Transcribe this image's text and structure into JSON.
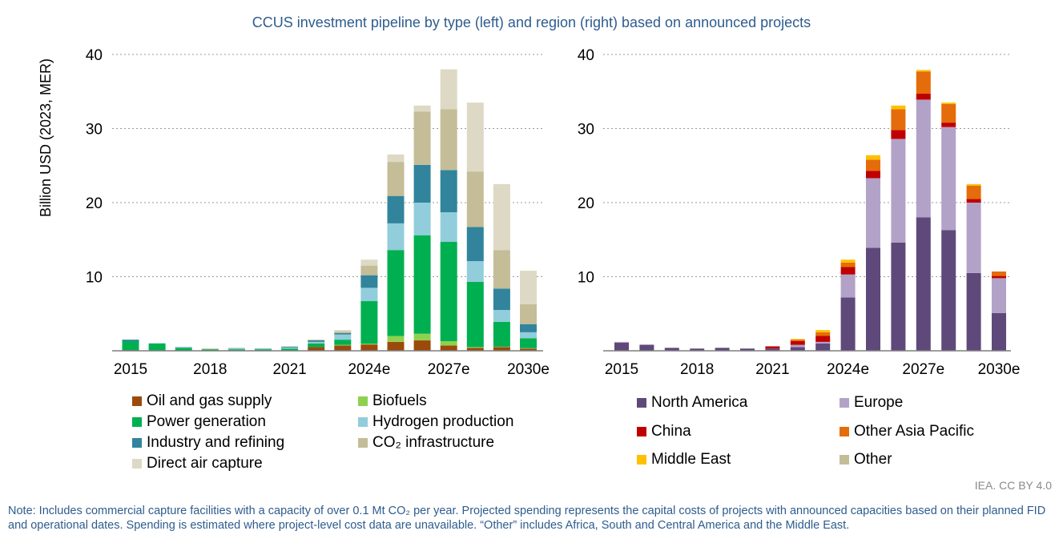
{
  "title": "CCUS investment pipeline by type (left) and region (right) based on announced projects",
  "credit": "IEA. CC BY 4.0",
  "note": "Note: Includes commercial capture facilities with a capacity of over 0.1 Mt CO₂ per year. Projected spending represents the capital costs of projects with announced capacities based on their planned FID and operational dates. Spending is estimated where project-level cost data are unavailable. “Other” includes Africa, South and Central America and the Middle East.",
  "chart_data": [
    {
      "type": "bar",
      "stacked": true,
      "title": "by type",
      "ylabel": "Billion USD (2023, MER)",
      "ylim": [
        0,
        40
      ],
      "yticks": [
        "10",
        "20",
        "30",
        "40"
      ],
      "grid": true,
      "categories": [
        "2015",
        "2016",
        "2017",
        "2018",
        "2019",
        "2020",
        "2021",
        "2022",
        "2023",
        "2024e",
        "2025e",
        "2026e",
        "2027e",
        "2028e",
        "2029e",
        "2030e"
      ],
      "xtick_labels": [
        "2015",
        "2018",
        "2021",
        "2024e",
        "2027e",
        "2030e"
      ],
      "legend_position": "bottom",
      "series": [
        {
          "name": "Oil and gas supply",
          "color": "#9c4a0c",
          "values": [
            0.1,
            0,
            0,
            0,
            0,
            0,
            0,
            0.5,
            0.7,
            0.85,
            1.2,
            1.4,
            0.7,
            0.4,
            0.5,
            0.3
          ]
        },
        {
          "name": "Biofuels",
          "color": "#8fd14f",
          "values": [
            0,
            0,
            0,
            0,
            0,
            0,
            0,
            0,
            0.1,
            0.1,
            0.8,
            0.9,
            0.6,
            0.1,
            0.05,
            0.05
          ]
        },
        {
          "name": "Power generation",
          "color": "#00b050",
          "values": [
            1.2,
            1.0,
            0.4,
            0.2,
            0.2,
            0.2,
            0.3,
            0.5,
            0.7,
            5.75,
            11.6,
            13.3,
            13.4,
            8.8,
            3.35,
            1.35
          ]
        },
        {
          "name": "Hydrogen production",
          "color": "#92cddc",
          "values": [
            0,
            0,
            0.05,
            0,
            0.1,
            0.05,
            0.15,
            0.2,
            0.7,
            1.8,
            3.6,
            4.4,
            4.0,
            2.8,
            1.6,
            0.8
          ]
        },
        {
          "name": "Industry and refining",
          "color": "#31849b",
          "values": [
            0.2,
            0,
            0.05,
            0,
            0.05,
            0.05,
            0.1,
            0.2,
            0.2,
            1.7,
            3.7,
            5.1,
            5.7,
            4.6,
            2.9,
            1.1
          ]
        },
        {
          "name": "CO₂ infrastructure",
          "color": "#c4bd97",
          "values": [
            0,
            0,
            0,
            0.1,
            0.05,
            0,
            0.05,
            0.1,
            0.2,
            1.3,
            4.6,
            7.2,
            8.2,
            7.5,
            5.2,
            2.7
          ]
        },
        {
          "name": "Direct air capture",
          "color": "#ddd9c4",
          "values": [
            0,
            0,
            0,
            0,
            0,
            0,
            0,
            0,
            0.2,
            0.8,
            1.0,
            0.8,
            5.4,
            9.3,
            8.9,
            4.5
          ]
        }
      ]
    },
    {
      "type": "bar",
      "stacked": true,
      "title": "by region",
      "ylim": [
        0,
        40
      ],
      "yticks": [
        "10",
        "20",
        "30",
        "40"
      ],
      "grid": true,
      "categories": [
        "2015",
        "2016",
        "2017",
        "2018",
        "2019",
        "2020",
        "2021",
        "2022",
        "2023",
        "2024e",
        "2025e",
        "2026e",
        "2027e",
        "2028e",
        "2029e",
        "2030e"
      ],
      "xtick_labels": [
        "2015",
        "2018",
        "2021",
        "2024e",
        "2027e",
        "2030e"
      ],
      "legend_position": "bottom",
      "series": [
        {
          "name": "North America",
          "color": "#5f497a",
          "values": [
            1.1,
            0.8,
            0.4,
            0.3,
            0.4,
            0.3,
            0.3,
            0.5,
            1.0,
            7.2,
            13.9,
            14.6,
            18.0,
            16.3,
            10.5,
            5.1
          ]
        },
        {
          "name": "Europe",
          "color": "#b3a2c7",
          "values": [
            0.1,
            0.05,
            0,
            0,
            0,
            0,
            0,
            0.3,
            0.2,
            3.1,
            9.4,
            14.0,
            15.9,
            13.9,
            9.5,
            4.7
          ]
        },
        {
          "name": "China",
          "color": "#c00000",
          "values": [
            0,
            0,
            0,
            0,
            0,
            0,
            0.3,
            0.5,
            0.8,
            1.0,
            1.0,
            1.2,
            0.8,
            0.6,
            0.5,
            0.3
          ]
        },
        {
          "name": "Other Asia Pacific",
          "color": "#e46c0a",
          "values": [
            0,
            0,
            0,
            0,
            0,
            0,
            0,
            0.2,
            0.5,
            0.6,
            1.5,
            2.8,
            3.0,
            2.5,
            1.8,
            0.6
          ]
        },
        {
          "name": "Middle East",
          "color": "#ffc000",
          "values": [
            0,
            0,
            0,
            0,
            0,
            0,
            0,
            0.1,
            0.3,
            0.4,
            0.6,
            0.5,
            0.2,
            0.2,
            0.2,
            0
          ]
        },
        {
          "name": "Other",
          "color": "#c4bd97",
          "values": [
            0,
            0,
            0,
            0,
            0,
            0,
            0,
            0,
            0,
            0,
            0,
            0,
            0,
            0,
            0,
            0
          ]
        }
      ]
    }
  ]
}
